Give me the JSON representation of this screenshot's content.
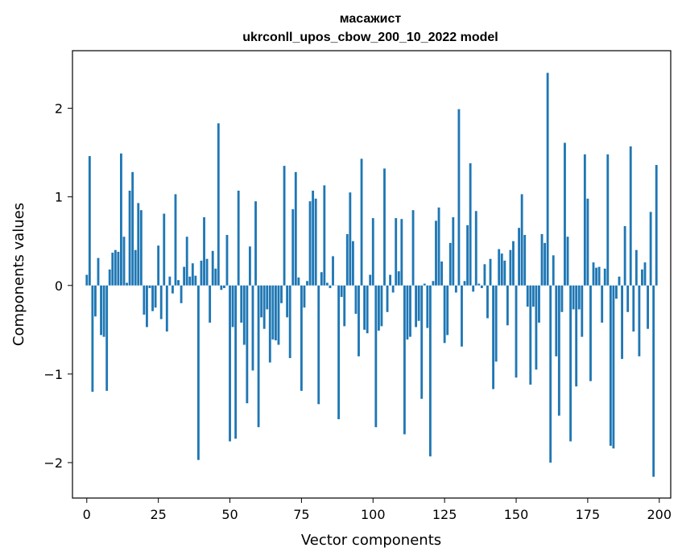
{
  "chart_data": {
    "type": "bar",
    "title": "масажист",
    "subtitle": "ukrconll_upos_cbow_200_10_2022 model",
    "xlabel": "Vector components",
    "ylabel": "Components values",
    "xlim": [
      -5,
      204
    ],
    "ylim": [
      -2.4,
      2.65
    ],
    "xticks": [
      0,
      25,
      50,
      75,
      100,
      125,
      150,
      175,
      200
    ],
    "xtick_labels": [
      "0",
      "25",
      "50",
      "75",
      "100",
      "125",
      "150",
      "175",
      "200"
    ],
    "yticks": [
      -2,
      -1,
      0,
      1,
      2
    ],
    "ytick_labels": [
      "−2",
      "−1",
      "0",
      "1",
      "2"
    ],
    "grid": false,
    "color": "#1f77b4",
    "values": [
      0.12,
      1.46,
      -1.2,
      -0.35,
      0.31,
      -0.56,
      -0.58,
      -1.19,
      0.18,
      0.37,
      0.4,
      0.38,
      1.49,
      0.55,
      0.03,
      1.07,
      1.28,
      0.4,
      0.93,
      0.85,
      -0.33,
      -0.47,
      -0.03,
      -0.29,
      -0.25,
      0.45,
      -0.38,
      0.81,
      -0.52,
      0.1,
      -0.09,
      1.03,
      0.06,
      -0.2,
      0.21,
      0.55,
      0.1,
      0.25,
      0.11,
      -1.97,
      0.28,
      0.77,
      0.3,
      -0.42,
      0.39,
      0.19,
      1.83,
      -0.05,
      -0.03,
      0.57,
      -1.76,
      -0.47,
      -1.73,
      1.07,
      -0.42,
      -0.67,
      -1.33,
      0.44,
      -0.96,
      0.95,
      -1.6,
      -0.36,
      -0.49,
      -0.27,
      -0.87,
      -0.61,
      -0.62,
      -0.67,
      -0.2,
      1.35,
      -0.36,
      -0.82,
      0.86,
      1.28,
      0.09,
      -1.19,
      -0.25,
      0.05,
      0.95,
      1.07,
      0.98,
      -1.34,
      0.15,
      1.13,
      0.03,
      -0.03,
      0.33,
      0.0,
      -1.51,
      -0.13,
      -0.46,
      0.58,
      1.05,
      0.5,
      -0.32,
      -0.8,
      1.43,
      -0.5,
      -0.54,
      0.12,
      0.76,
      -1.6,
      -0.51,
      -0.46,
      1.32,
      -0.3,
      0.12,
      -0.08,
      0.76,
      0.16,
      0.75,
      -1.68,
      -0.61,
      -0.58,
      0.85,
      -0.47,
      -0.4,
      -1.28,
      0.02,
      -0.48,
      -1.93,
      0.05,
      0.73,
      0.88,
      0.27,
      -0.65,
      -0.56,
      0.48,
      0.77,
      -0.08,
      1.99,
      -0.69,
      0.05,
      0.68,
      1.38,
      -0.07,
      0.84,
      0.02,
      -0.03,
      0.24,
      -0.37,
      0.3,
      -1.17,
      -0.86,
      0.41,
      0.36,
      0.28,
      -0.45,
      0.4,
      0.5,
      -1.04,
      0.65,
      1.03,
      0.57,
      -0.24,
      -1.12,
      -0.24,
      -0.95,
      -0.42,
      0.58,
      0.48,
      2.4,
      -2.0,
      0.34,
      -0.8,
      -1.47,
      -0.3,
      1.61,
      0.55,
      -1.76,
      -0.27,
      -1.14,
      -0.27,
      -0.58,
      1.48,
      0.98,
      -1.08,
      0.26,
      0.2,
      0.21,
      -0.42,
      0.19,
      1.48,
      -1.81,
      -1.84,
      -0.15,
      0.1,
      -0.83,
      0.67,
      -0.3,
      1.57,
      -0.52,
      0.4,
      -0.8,
      0.18,
      0.26,
      -0.49,
      0.83,
      -2.16,
      1.36
    ]
  }
}
